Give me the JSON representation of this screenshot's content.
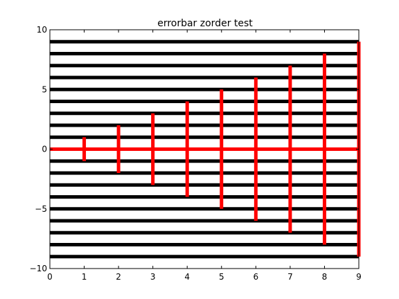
{
  "chart_data": {
    "type": "line",
    "title": "errorbar zorder test",
    "xlabel": "",
    "ylabel": "",
    "xlim": [
      0,
      9
    ],
    "ylim": [
      -10,
      10
    ],
    "x_ticks": [
      0,
      1,
      2,
      3,
      4,
      5,
      6,
      7,
      8,
      9
    ],
    "y_ticks": [
      -10,
      -5,
      0,
      5,
      10
    ],
    "x_tick_labels": [
      "0",
      "1",
      "2",
      "3",
      "4",
      "5",
      "6",
      "7",
      "8",
      "9"
    ],
    "y_tick_labels": [
      "−10",
      "−5",
      "0",
      "5",
      "10"
    ],
    "grid": false,
    "horizontal_lines": {
      "color": "#000000",
      "y": [
        -9,
        -8,
        -7,
        -6,
        -5,
        -4,
        -3,
        -2,
        -1,
        1,
        2,
        3,
        4,
        5,
        6,
        7,
        8,
        9
      ],
      "x_range": [
        0,
        9
      ]
    },
    "errorbar_series": {
      "color": "#ff0000",
      "x": [
        0,
        1,
        2,
        3,
        4,
        5,
        6,
        7,
        8,
        9
      ],
      "y": [
        0,
        0,
        0,
        0,
        0,
        0,
        0,
        0,
        0,
        0
      ],
      "yerr": [
        0,
        1,
        2,
        3,
        4,
        5,
        6,
        7,
        8,
        9
      ]
    }
  }
}
